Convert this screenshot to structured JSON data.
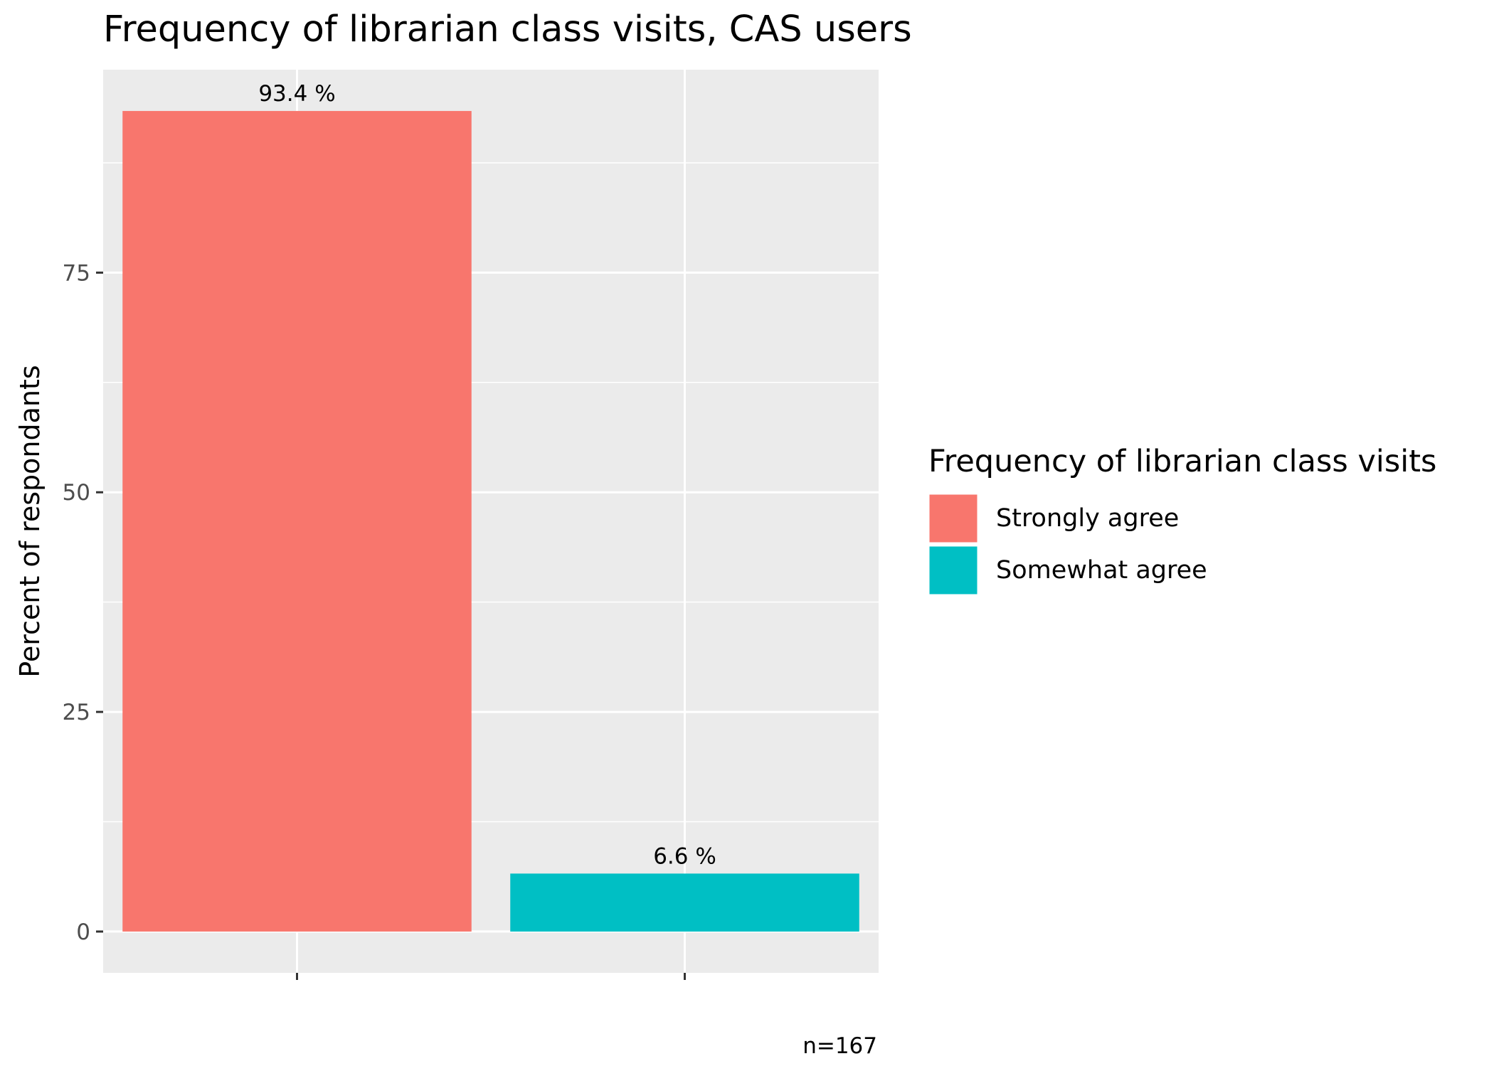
{
  "chart_data": {
    "type": "bar",
    "title": "Frequency of librarian class visits,  CAS users",
    "xlabel": "",
    "ylabel": "Percent of respondants",
    "categories": [
      "Strongly agree",
      "Somewhat agree"
    ],
    "values": [
      93.4,
      6.6
    ],
    "data_labels": [
      "93.4 %",
      "6.6 %"
    ],
    "colors": [
      "#F8766D",
      "#00BFC4"
    ],
    "ylim": [
      -4.7,
      98.1
    ],
    "yticks": [
      0,
      25,
      50,
      75
    ],
    "ytick_labels": [
      "0",
      "25",
      "50",
      "75"
    ],
    "grid": true,
    "panel_background": "#EBEBEB",
    "legend": {
      "title": "Frequency of librarian class visits",
      "position": "right",
      "entries": [
        "Strongly agree",
        "Somewhat agree"
      ]
    },
    "caption": "n=167"
  }
}
